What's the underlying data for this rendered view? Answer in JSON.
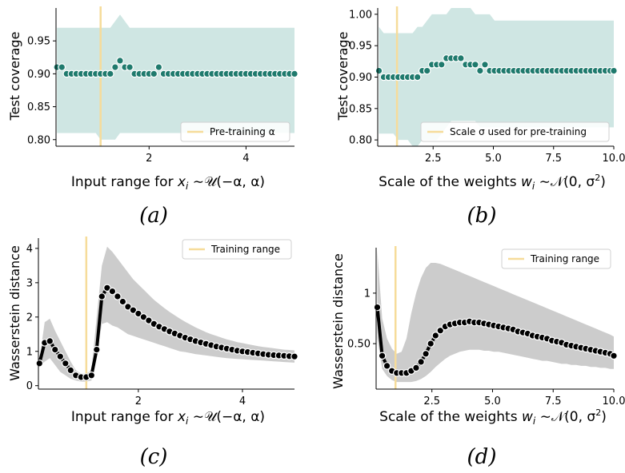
{
  "colors": {
    "band_coverage": "#cfe6e3",
    "point_coverage": "#1f7a6d",
    "band_wasserstein": "#cccccc",
    "line_wasserstein": "#000000",
    "vline": "#f6dc9a",
    "axis": "#000000"
  },
  "chart_data": [
    {
      "type": "scatter",
      "panel": "a",
      "caption": "(a)",
      "xlabel": "Input range for x_i ~ U(−α, α)",
      "ylabel": "Test coverage",
      "xlim": [
        0.08,
        5.0
      ],
      "ylim": [
        0.79,
        1.0
      ],
      "xticks": [
        2,
        4
      ],
      "yticks": [
        0.8,
        0.85,
        0.9,
        0.95
      ],
      "vline": 1.0,
      "legend": {
        "label": "Pre-training α",
        "position": "lower-right"
      },
      "x": [
        0.1,
        0.2,
        0.3,
        0.4,
        0.5,
        0.6,
        0.7,
        0.8,
        0.9,
        1.0,
        1.1,
        1.2,
        1.3,
        1.4,
        1.5,
        1.6,
        1.7,
        1.8,
        1.9,
        2.0,
        2.1,
        2.2,
        2.3,
        2.4,
        2.5,
        2.6,
        2.7,
        2.8,
        2.9,
        3.0,
        3.1,
        3.2,
        3.3,
        3.4,
        3.5,
        3.6,
        3.7,
        3.8,
        3.9,
        4.0,
        4.1,
        4.2,
        4.3,
        4.4,
        4.5,
        4.6,
        4.7,
        4.8,
        4.9,
        5.0
      ],
      "y": [
        0.91,
        0.91,
        0.9,
        0.9,
        0.9,
        0.9,
        0.9,
        0.9,
        0.9,
        0.9,
        0.9,
        0.9,
        0.91,
        0.92,
        0.91,
        0.91,
        0.9,
        0.9,
        0.9,
        0.9,
        0.9,
        0.91,
        0.9,
        0.9,
        0.9,
        0.9,
        0.9,
        0.9,
        0.9,
        0.9,
        0.9,
        0.9,
        0.9,
        0.9,
        0.9,
        0.9,
        0.9,
        0.9,
        0.9,
        0.9,
        0.9,
        0.9,
        0.9,
        0.9,
        0.9,
        0.9,
        0.9,
        0.9,
        0.9,
        0.9
      ],
      "band_lower": [
        0.81,
        0.81,
        0.81,
        0.81,
        0.81,
        0.81,
        0.81,
        0.81,
        0.81,
        0.8,
        0.8,
        0.8,
        0.8,
        0.81,
        0.81,
        0.81,
        0.81,
        0.81,
        0.81,
        0.81,
        0.81,
        0.81,
        0.81,
        0.81,
        0.81,
        0.81,
        0.81,
        0.81,
        0.81,
        0.81,
        0.81,
        0.81,
        0.81,
        0.81,
        0.81,
        0.81,
        0.81,
        0.81,
        0.81,
        0.81,
        0.81,
        0.81,
        0.81,
        0.81,
        0.81,
        0.81,
        0.81,
        0.81,
        0.81,
        0.81
      ],
      "band_upper": [
        0.97,
        0.97,
        0.97,
        0.97,
        0.97,
        0.97,
        0.97,
        0.97,
        0.97,
        0.97,
        0.97,
        0.97,
        0.98,
        0.99,
        0.98,
        0.97,
        0.97,
        0.97,
        0.97,
        0.97,
        0.97,
        0.97,
        0.97,
        0.97,
        0.97,
        0.97,
        0.97,
        0.97,
        0.97,
        0.97,
        0.97,
        0.97,
        0.97,
        0.97,
        0.97,
        0.97,
        0.97,
        0.97,
        0.97,
        0.97,
        0.97,
        0.97,
        0.97,
        0.97,
        0.97,
        0.97,
        0.97,
        0.97,
        0.97,
        0.97
      ]
    },
    {
      "type": "scatter",
      "panel": "b",
      "caption": "(b)",
      "xlabel": "Scale of the weights w_i ~ N(0, σ²)",
      "ylabel": "Test coverage",
      "xlim": [
        0.2,
        10.0
      ],
      "ylim": [
        0.79,
        1.01
      ],
      "xticks": [
        2.5,
        5.0,
        7.5,
        10.0
      ],
      "ytick_labels": [
        "0.80",
        "0.85",
        "0.90",
        "0.95",
        "1.00"
      ],
      "yticks": [
        0.8,
        0.85,
        0.9,
        0.95,
        1.0
      ],
      "vline": 1.0,
      "legend": {
        "label": "Scale σ used for pre-training",
        "position": "lower-right"
      },
      "x": [
        0.25,
        0.45,
        0.65,
        0.85,
        1.05,
        1.25,
        1.45,
        1.65,
        1.85,
        2.05,
        2.25,
        2.45,
        2.65,
        2.85,
        3.05,
        3.25,
        3.45,
        3.65,
        3.85,
        4.05,
        4.25,
        4.45,
        4.65,
        4.85,
        5.05,
        5.25,
        5.45,
        5.65,
        5.85,
        6.05,
        6.25,
        6.45,
        6.65,
        6.85,
        7.05,
        7.25,
        7.45,
        7.65,
        7.85,
        8.05,
        8.25,
        8.45,
        8.65,
        8.85,
        9.05,
        9.25,
        9.45,
        9.65,
        9.85,
        10.0
      ],
      "y": [
        0.91,
        0.9,
        0.9,
        0.9,
        0.9,
        0.9,
        0.9,
        0.9,
        0.9,
        0.91,
        0.91,
        0.92,
        0.92,
        0.92,
        0.93,
        0.93,
        0.93,
        0.93,
        0.92,
        0.92,
        0.92,
        0.91,
        0.92,
        0.91,
        0.91,
        0.91,
        0.91,
        0.91,
        0.91,
        0.91,
        0.91,
        0.91,
        0.91,
        0.91,
        0.91,
        0.91,
        0.91,
        0.91,
        0.91,
        0.91,
        0.91,
        0.91,
        0.91,
        0.91,
        0.91,
        0.91,
        0.91,
        0.91,
        0.91,
        0.91
      ],
      "band_lower": [
        0.81,
        0.81,
        0.81,
        0.81,
        0.8,
        0.8,
        0.8,
        0.79,
        0.79,
        0.8,
        0.8,
        0.8,
        0.8,
        0.81,
        0.82,
        0.83,
        0.83,
        0.83,
        0.83,
        0.83,
        0.83,
        0.82,
        0.82,
        0.82,
        0.82,
        0.82,
        0.82,
        0.82,
        0.82,
        0.82,
        0.82,
        0.82,
        0.82,
        0.82,
        0.82,
        0.82,
        0.82,
        0.82,
        0.82,
        0.82,
        0.82,
        0.82,
        0.82,
        0.82,
        0.82,
        0.82,
        0.82,
        0.82,
        0.82,
        0.82
      ],
      "band_upper": [
        0.98,
        0.97,
        0.97,
        0.97,
        0.97,
        0.97,
        0.97,
        0.97,
        0.98,
        0.98,
        0.99,
        1.0,
        1.0,
        1.0,
        1.0,
        1.01,
        1.01,
        1.01,
        1.01,
        1.01,
        1.0,
        1.0,
        1.0,
        1.0,
        0.99,
        0.99,
        0.99,
        0.99,
        0.99,
        0.99,
        0.99,
        0.99,
        0.99,
        0.99,
        0.99,
        0.99,
        0.99,
        0.99,
        0.99,
        0.99,
        0.99,
        0.99,
        0.99,
        0.99,
        0.99,
        0.99,
        0.99,
        0.99,
        0.99,
        0.99
      ]
    },
    {
      "type": "line",
      "panel": "c",
      "caption": "(c)",
      "xlabel": "Input range for x_i ~ U(−α, α)",
      "ylabel": "Wasserstein distance",
      "xlim": [
        0.08,
        5.0
      ],
      "ylim": [
        -0.1,
        4.3
      ],
      "xticks": [
        2,
        4
      ],
      "yticks": [
        0,
        1,
        2,
        3,
        4
      ],
      "vline": 1.0,
      "legend": {
        "label": "Training range",
        "position": "top-right"
      },
      "x": [
        0.1,
        0.2,
        0.3,
        0.4,
        0.5,
        0.6,
        0.7,
        0.8,
        0.9,
        1.0,
        1.1,
        1.2,
        1.3,
        1.4,
        1.5,
        1.6,
        1.7,
        1.8,
        1.9,
        2.0,
        2.1,
        2.2,
        2.3,
        2.4,
        2.5,
        2.6,
        2.7,
        2.8,
        2.9,
        3.0,
        3.1,
        3.2,
        3.3,
        3.4,
        3.5,
        3.6,
        3.7,
        3.8,
        3.9,
        4.0,
        4.1,
        4.2,
        4.3,
        4.4,
        4.5,
        4.6,
        4.7,
        4.8,
        4.9,
        5.0
      ],
      "y": [
        0.65,
        1.25,
        1.3,
        1.05,
        0.85,
        0.65,
        0.45,
        0.3,
        0.25,
        0.25,
        0.3,
        1.05,
        2.6,
        2.85,
        2.75,
        2.6,
        2.45,
        2.3,
        2.2,
        2.1,
        2.0,
        1.9,
        1.8,
        1.72,
        1.65,
        1.58,
        1.52,
        1.46,
        1.4,
        1.35,
        1.3,
        1.26,
        1.22,
        1.18,
        1.14,
        1.11,
        1.08,
        1.05,
        1.02,
        1.0,
        0.98,
        0.96,
        0.94,
        0.92,
        0.9,
        0.89,
        0.88,
        0.87,
        0.86,
        0.85
      ],
      "band_lower": [
        0.55,
        0.7,
        0.8,
        0.6,
        0.4,
        0.3,
        0.2,
        0.15,
        0.12,
        0.12,
        0.15,
        0.9,
        1.8,
        1.85,
        1.75,
        1.7,
        1.6,
        1.5,
        1.45,
        1.4,
        1.35,
        1.3,
        1.25,
        1.2,
        1.15,
        1.1,
        1.05,
        1.0,
        0.98,
        0.95,
        0.92,
        0.9,
        0.88,
        0.86,
        0.84,
        0.82,
        0.8,
        0.79,
        0.78,
        0.77,
        0.76,
        0.75,
        0.74,
        0.73,
        0.72,
        0.71,
        0.7,
        0.69,
        0.68,
        0.67
      ],
      "band_upper": [
        0.75,
        1.85,
        1.95,
        1.6,
        1.3,
        1.0,
        0.7,
        0.45,
        0.35,
        0.35,
        0.45,
        2.0,
        3.5,
        4.05,
        3.9,
        3.7,
        3.5,
        3.3,
        3.1,
        2.95,
        2.8,
        2.65,
        2.5,
        2.38,
        2.26,
        2.15,
        2.05,
        1.95,
        1.86,
        1.78,
        1.7,
        1.63,
        1.56,
        1.5,
        1.45,
        1.4,
        1.35,
        1.31,
        1.27,
        1.24,
        1.21,
        1.18,
        1.15,
        1.13,
        1.11,
        1.09,
        1.07,
        1.05,
        1.04,
        1.03
      ]
    },
    {
      "type": "line",
      "panel": "d",
      "caption": "(d)",
      "xlabel": "Scale of the weights w_i ~ N(0, σ²)",
      "ylabel": "Wasserstein distance",
      "xlim": [
        0.2,
        10.0
      ],
      "ylim": [
        0.05,
        1.45
      ],
      "xticks": [
        2.5,
        5.0,
        7.5,
        10.0
      ],
      "yticks": [
        0.5,
        1.0
      ],
      "vline": 1.0,
      "legend": {
        "label": "Training range",
        "position": "top-right"
      },
      "x": [
        0.25,
        0.45,
        0.65,
        0.85,
        1.05,
        1.25,
        1.45,
        1.65,
        1.85,
        2.05,
        2.25,
        2.45,
        2.65,
        2.85,
        3.05,
        3.25,
        3.45,
        3.65,
        3.85,
        4.05,
        4.25,
        4.45,
        4.65,
        4.85,
        5.05,
        5.25,
        5.45,
        5.65,
        5.85,
        6.05,
        6.25,
        6.45,
        6.65,
        6.85,
        7.05,
        7.25,
        7.45,
        7.65,
        7.85,
        8.05,
        8.25,
        8.45,
        8.65,
        8.85,
        9.05,
        9.25,
        9.45,
        9.65,
        9.85,
        10.0
      ],
      "y": [
        0.86,
        0.38,
        0.28,
        0.23,
        0.21,
        0.21,
        0.21,
        0.23,
        0.26,
        0.32,
        0.4,
        0.5,
        0.58,
        0.63,
        0.67,
        0.69,
        0.7,
        0.71,
        0.71,
        0.72,
        0.71,
        0.71,
        0.7,
        0.69,
        0.68,
        0.67,
        0.66,
        0.65,
        0.64,
        0.62,
        0.61,
        0.6,
        0.58,
        0.57,
        0.56,
        0.55,
        0.53,
        0.52,
        0.51,
        0.49,
        0.48,
        0.47,
        0.46,
        0.45,
        0.44,
        0.43,
        0.42,
        0.41,
        0.4,
        0.38
      ],
      "band_lower": [
        0.55,
        0.25,
        0.18,
        0.14,
        0.12,
        0.12,
        0.12,
        0.12,
        0.13,
        0.15,
        0.18,
        0.22,
        0.27,
        0.31,
        0.35,
        0.38,
        0.4,
        0.42,
        0.43,
        0.44,
        0.44,
        0.44,
        0.43,
        0.43,
        0.42,
        0.42,
        0.41,
        0.4,
        0.39,
        0.38,
        0.37,
        0.36,
        0.35,
        0.34,
        0.33,
        0.33,
        0.32,
        0.31,
        0.3,
        0.3,
        0.29,
        0.29,
        0.28,
        0.28,
        0.27,
        0.27,
        0.26,
        0.26,
        0.25,
        0.25
      ],
      "band_upper": [
        1.42,
        0.75,
        0.55,
        0.45,
        0.4,
        0.42,
        0.55,
        0.8,
        1.0,
        1.15,
        1.25,
        1.3,
        1.3,
        1.29,
        1.27,
        1.25,
        1.23,
        1.21,
        1.19,
        1.17,
        1.15,
        1.13,
        1.11,
        1.09,
        1.07,
        1.05,
        1.03,
        1.01,
        0.99,
        0.97,
        0.95,
        0.93,
        0.91,
        0.89,
        0.87,
        0.85,
        0.83,
        0.81,
        0.79,
        0.77,
        0.75,
        0.73,
        0.71,
        0.69,
        0.67,
        0.65,
        0.63,
        0.61,
        0.59,
        0.57
      ]
    }
  ]
}
